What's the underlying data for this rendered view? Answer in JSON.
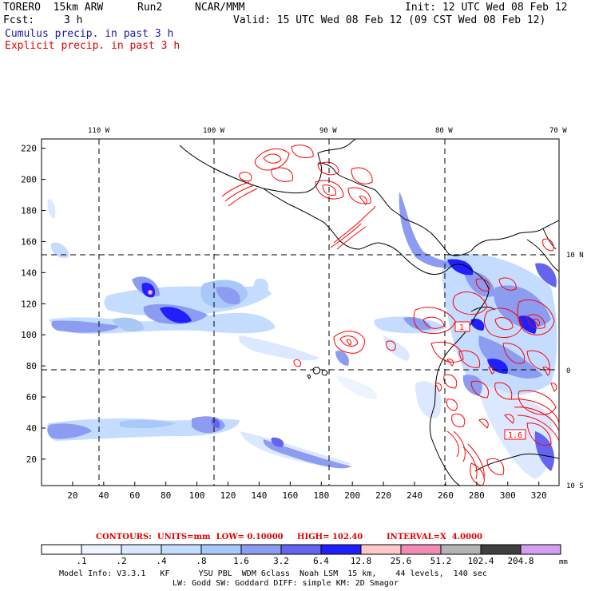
{
  "header": {
    "model": "TORERO  15km ARW",
    "run": "Run2",
    "org": "NCAR/MMM",
    "init": "Init: 12 UTC Wed 08 Feb 12",
    "fcst_label": "Fcst:",
    "fcst_value": "3 h",
    "valid": "Valid: 15 UTC Wed 08 Feb 12 (09 CST Wed 08 Feb 12)",
    "line_cumulus": "Cumulus precip. in past 3 h",
    "line_explicit": "Explicit precip. in past 3 h"
  },
  "map": {
    "lon_labels": [
      "110 W",
      "100 W",
      "90 W",
      "80 W",
      "70 W"
    ],
    "lat_labels": [
      "10 N",
      "0",
      "10 S"
    ],
    "x_ticks": [
      "20",
      "40",
      "60",
      "80",
      "100",
      "120",
      "140",
      "160",
      "180",
      "200",
      "220",
      "240",
      "260",
      "280",
      "300",
      "320"
    ],
    "y_ticks": [
      "220",
      "200",
      "180",
      "160",
      "140",
      "120",
      "100",
      "80",
      "60",
      "40",
      "20"
    ],
    "contour_boxes": [
      "1",
      "1.6"
    ],
    "colors": {
      "cumulus": "#2020ff",
      "explicit": "#ff0000",
      "coast": "#000000"
    }
  },
  "footer": {
    "contours_label": "CONTOURS:  UNITS=mm  LOW= 0.10000",
    "high": "HIGH= 102.40",
    "interval": "INTERVAL=X  4.0000",
    "colorbar_labels": [
      ".1",
      ".2",
      ".4",
      ".8",
      "1.6",
      "3.2",
      "6.4",
      "12.8",
      "25.6",
      "51.2",
      "102.4",
      "204.8"
    ],
    "colorbar_unit": "mm",
    "colorbar_colors": [
      "#ffffff",
      "#eef4ff",
      "#dce8ff",
      "#c4dcff",
      "#a8c8f8",
      "#8c9cf0",
      "#6464f0",
      "#2020ff",
      "#ffc8c8",
      "#f08cb4",
      "#b4b4b4",
      "#404040",
      "#d2a0f0"
    ],
    "model_info": "Model Info: V3.3.1   KF      YSU PBL  WDM 6class  Noah LSM  15 km,    44 levels,  140 sec",
    "model_info_2": "LW: Godd SW: Goddard DIFF: simple KM: 2D Smagor"
  }
}
